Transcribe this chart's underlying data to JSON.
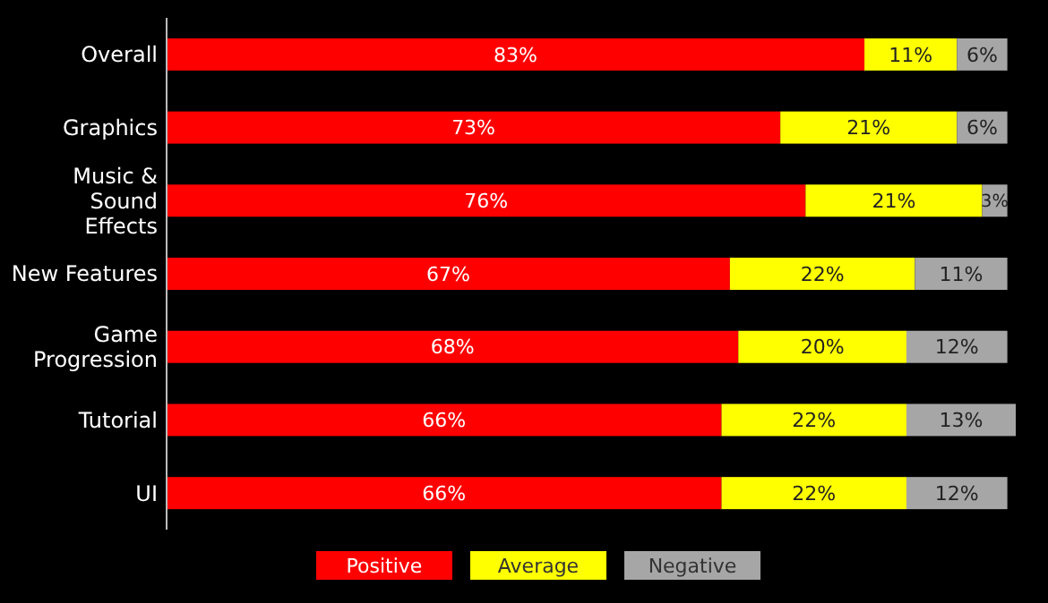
{
  "chart_data": {
    "type": "bar",
    "orientation": "horizontal",
    "stacked": true,
    "legend": "bottom",
    "categories": [
      "Overall",
      "Graphics",
      "Music & Sound Effects",
      "New Features",
      "Game Progression",
      "Tutorial",
      "UI"
    ],
    "series": [
      {
        "name": "Positive",
        "color": "#ff0000",
        "values": [
          83,
          73,
          76,
          67,
          68,
          66,
          66
        ],
        "value_labels": [
          "83%",
          "73%",
          "76%",
          "67%",
          "68%",
          "66%",
          "66%"
        ]
      },
      {
        "name": "Average",
        "color": "#ffff00",
        "values": [
          11,
          21,
          21,
          22,
          20,
          22,
          22
        ],
        "value_labels": [
          "11%",
          "21%",
          "21%",
          "22%",
          "20%",
          "22%",
          "22%"
        ]
      },
      {
        "name": "Negative",
        "color": "#a6a6a6",
        "values": [
          6,
          6,
          3,
          11,
          12,
          13,
          12
        ],
        "value_labels": [
          "6%",
          "6%",
          "3%",
          "11%",
          "12%",
          "13%",
          "12%"
        ]
      }
    ]
  }
}
